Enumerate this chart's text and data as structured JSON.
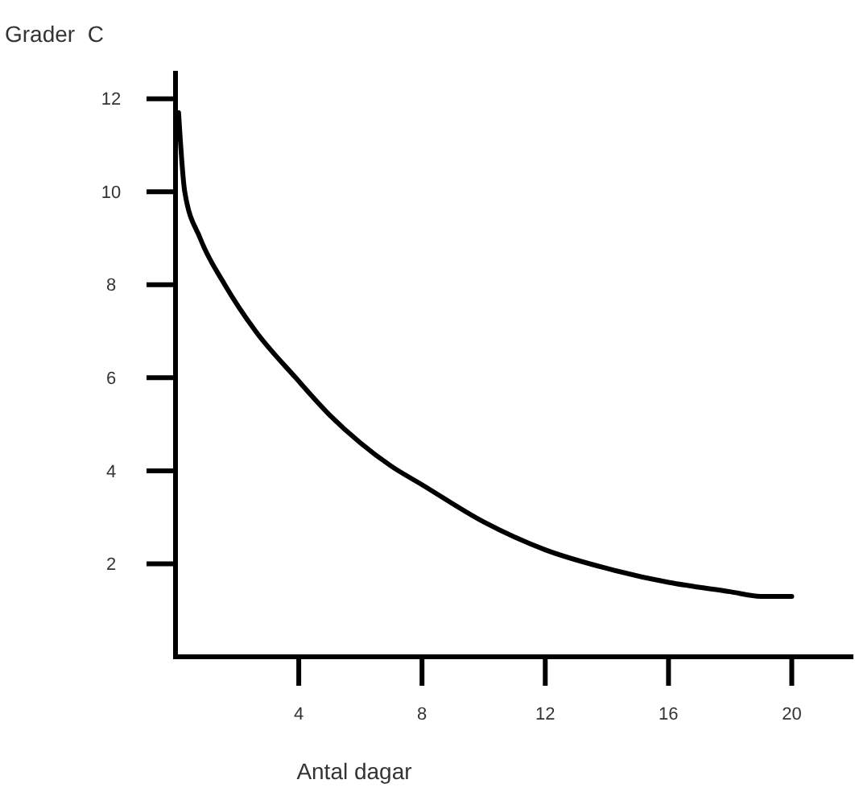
{
  "chart_data": {
    "type": "line",
    "ylabel": "Grader  C",
    "xlabel": "Antal dagar",
    "x": [
      0.1,
      0.3,
      0.8,
      1.6,
      2.6,
      3.9,
      5,
      6,
      7,
      8,
      10,
      12,
      14,
      16,
      18,
      19,
      20
    ],
    "series": [
      {
        "color": "#000000",
        "values": [
          11.7,
          10,
          9,
          8,
          7,
          6,
          5.2,
          4.6,
          4.1,
          3.7,
          2.9,
          2.3,
          1.9,
          1.6,
          1.4,
          1.3,
          1.3
        ]
      }
    ],
    "xlim": [
      0,
      22
    ],
    "ylim": [
      0,
      12.6
    ],
    "xticks": [
      4,
      8,
      12,
      16,
      20
    ],
    "yticks": [
      2,
      4,
      6,
      8,
      10,
      12
    ],
    "grid": false,
    "marker": "none",
    "line_style": "solid"
  }
}
